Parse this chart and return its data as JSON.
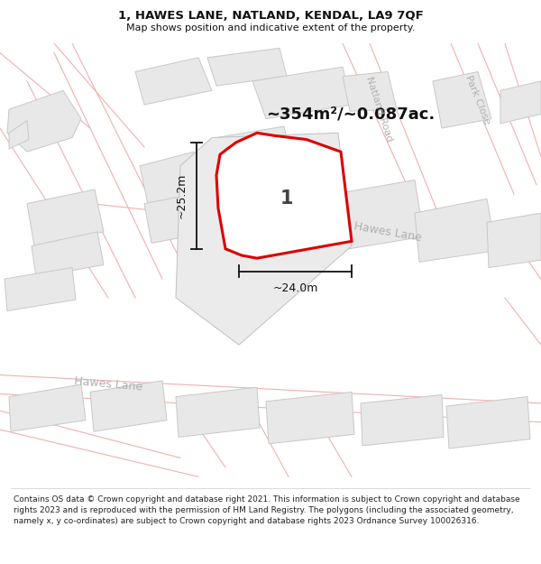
{
  "title": "1, HAWES LANE, NATLAND, KENDAL, LA9 7QF",
  "subtitle": "Map shows position and indicative extent of the property.",
  "area_text": "~354m²/~0.087ac.",
  "dim_width": "~24.0m",
  "dim_height": "~25.2m",
  "label_number": "1",
  "label_natland_road": "Natland Road",
  "label_park_close": "Park Close",
  "label_hawes_lane_lower": "Hawes Lane",
  "label_hawes_lane_upper": "Hawes Lane",
  "footer": "Contains OS data © Crown copyright and database right 2021. This information is subject to Crown copyright and database rights 2023 and is reproduced with the permission of HM Land Registry. The polygons (including the associated geometry, namely x, y co-ordinates) are subject to Crown copyright and database rights 2023 Ordnance Survey 100026316.",
  "bg_color": "#ffffff",
  "building_fill": "#e8e8e8",
  "building_edge": "#c8c8c8",
  "road_fill": "#f5f5f5",
  "highlight_fill": "#ffffff",
  "highlight_border": "#dd0000",
  "road_line_color": "#f0b0b0",
  "street_label_color": "#b0b0b0",
  "dim_color": "#111111",
  "number_color": "#444444",
  "title_color": "#111111",
  "area_color": "#111111"
}
